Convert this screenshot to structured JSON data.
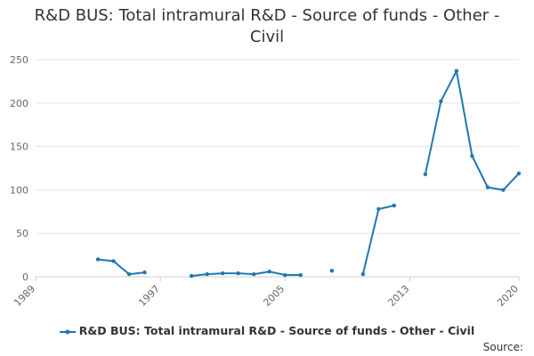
{
  "chart_data": {
    "type": "line",
    "title": "R&D BUS: Total intramural R&D - Source of funds - Other - Civil",
    "xlabel": "",
    "ylabel": "",
    "xlim": [
      1989,
      2020
    ],
    "ylim": [
      0,
      250
    ],
    "x_ticks": [
      "1989",
      "1997",
      "2005",
      "2013",
      "2020"
    ],
    "y_ticks": [
      "0",
      "50",
      "100",
      "150",
      "200",
      "250"
    ],
    "grid": true,
    "legend_position": "bottom",
    "series": [
      {
        "name": "R&D BUS: Total intramural R&D - Source of funds - Other - Civil",
        "color": "#1f77b4",
        "points": [
          [
            1993,
            20
          ],
          [
            1994,
            18
          ],
          [
            1995,
            3
          ],
          [
            1996,
            5
          ],
          [
            1999,
            1
          ],
          [
            2000,
            3
          ],
          [
            2001,
            4
          ],
          [
            2002,
            4
          ],
          [
            2003,
            3
          ],
          [
            2004,
            6
          ],
          [
            2005,
            2
          ],
          [
            2006,
            2
          ],
          [
            2008,
            7
          ],
          [
            2010,
            3
          ],
          [
            2011,
            78
          ],
          [
            2012,
            82
          ],
          [
            2014,
            118
          ],
          [
            2015,
            202
          ],
          [
            2016,
            237
          ],
          [
            2017,
            139
          ],
          [
            2018,
            103
          ],
          [
            2019,
            100
          ],
          [
            2020,
            119
          ]
        ]
      }
    ]
  },
  "source_label": "Source:"
}
